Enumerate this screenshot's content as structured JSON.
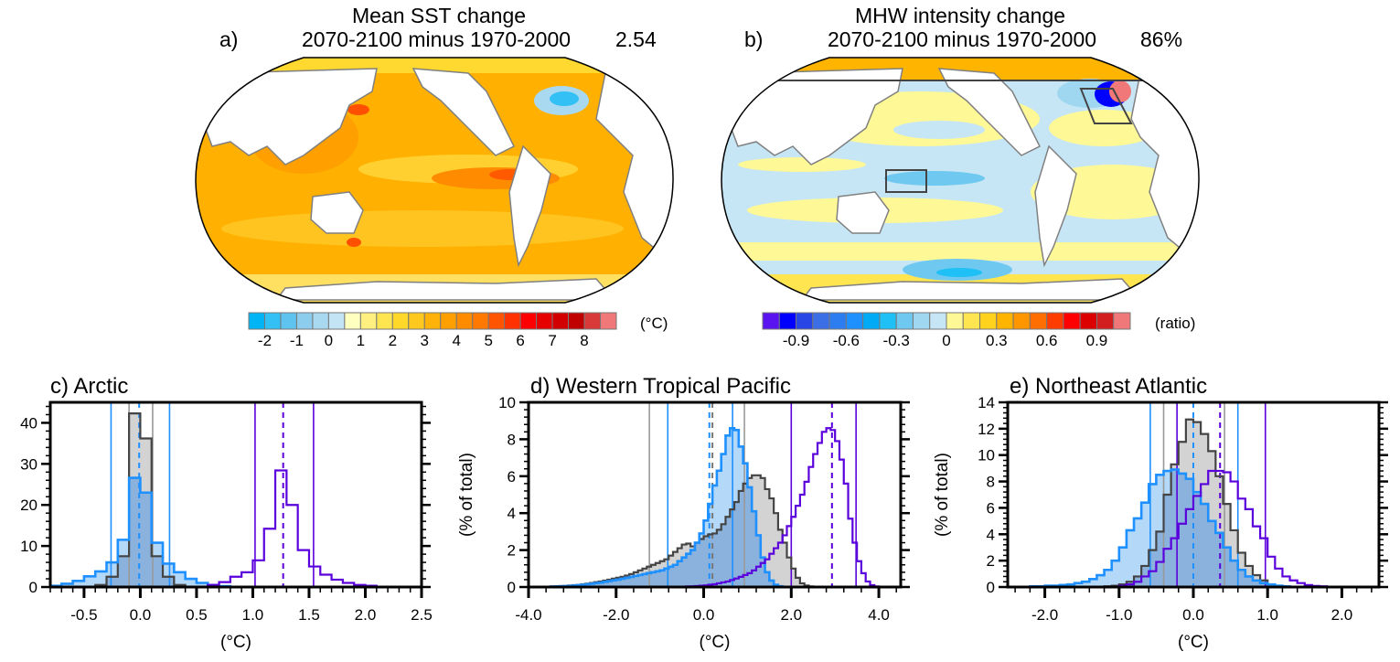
{
  "maps": [
    {
      "id": "a",
      "letter": "a)",
      "title": "Mean SST change",
      "subtitle": "2070-2100 minus 1970-2000",
      "stat": "2.54",
      "unit": "(°C)",
      "colorbar": {
        "colors": [
          "#00b4f5",
          "#33c0f5",
          "#5ec3ee",
          "#8ccdee",
          "#a9d9f0",
          "#c3e4f5",
          "#ffffc0",
          "#fff080",
          "#ffe650",
          "#ffd82a",
          "#ffc81e",
          "#ffb20a",
          "#ffa000",
          "#ff8c00",
          "#ff7800",
          "#ff5500",
          "#ff3200",
          "#ff0000",
          "#e60000",
          "#d20000",
          "#c00000",
          "#d83a3a",
          "#f07878"
        ],
        "tick_labels": [
          "-2",
          "-1",
          "0",
          "1",
          "2",
          "3",
          "4",
          "5",
          "6",
          "7",
          "8"
        ],
        "tick_boundaries": [
          1,
          3,
          5,
          7,
          9,
          11,
          13,
          15,
          17,
          19,
          21
        ]
      },
      "boxes": []
    },
    {
      "id": "b",
      "letter": "b)",
      "title": "MHW intensity change",
      "subtitle": "2070-2100 minus 1970-2000",
      "stat": "86%",
      "unit": "(ratio)",
      "colorbar": {
        "colors": [
          "#5a14f0",
          "#0000ff",
          "#2846e6",
          "#3c6ee6",
          "#2d7df0",
          "#1e90ff",
          "#00aaf5",
          "#1ec0f5",
          "#6ec8f0",
          "#9fd6f0",
          "#c6e6f5",
          "#fff896",
          "#ffe650",
          "#ffd21e",
          "#ffb400",
          "#ff9600",
          "#ff6e00",
          "#ff3c00",
          "#ff0000",
          "#dc0000",
          "#d21e1e",
          "#f07878"
        ],
        "tick_labels": [
          "-0.9",
          "-0.6",
          "-0.3",
          "0",
          "0.3",
          "0.6",
          "0.9"
        ],
        "tick_boundaries": [
          2,
          5,
          8,
          11,
          14,
          17,
          20
        ]
      },
      "boxes": [
        "Western Tropical Pacific box",
        "Northeast Atlantic box",
        "Arctic boundary line"
      ]
    }
  ],
  "chart_data": [
    {
      "type": "histogram",
      "id": "c",
      "title": "c) Arctic",
      "xlabel": "(°C)",
      "ylabel": "",
      "xlim": [
        -0.8,
        2.5
      ],
      "ylim": [
        0,
        45
      ],
      "xticks": [
        -0.5,
        0.0,
        0.5,
        1.0,
        1.5,
        2.0,
        2.5
      ],
      "xtick_labels": [
        "-0.5",
        "0.0",
        "0.5",
        "1.0",
        "1.5",
        "2.0",
        "2.5"
      ],
      "yticks": [
        0,
        10,
        20,
        30,
        40
      ],
      "ytick_labels": [
        "0",
        "10",
        "20",
        "30",
        "40"
      ],
      "bin_width": 0.1,
      "series": [
        {
          "name": "historical (gray filled)",
          "color": "#444444",
          "fill": "#d3d3d3",
          "bin_start": -0.4,
          "values": [
            0.5,
            2.5,
            7.5,
            42.3,
            36.2,
            7.5,
            2.5,
            0.5
          ]
        },
        {
          "name": "detrended future (blue filled)",
          "color": "#1e90ff",
          "fill": "#8ab8e6",
          "bin_start": -0.8,
          "values": [
            0.3,
            0.8,
            1.5,
            2.6,
            3.8,
            6.0,
            11.5,
            26.6,
            23.0,
            10.8,
            5.7,
            3.6,
            2.0,
            1.0,
            0.5,
            0.2
          ]
        },
        {
          "name": "future (purple outline)",
          "color": "#5a00dc",
          "fill": "none",
          "bin_start": 0.5,
          "values": [
            0.1,
            0.5,
            1.2,
            2.5,
            3.6,
            6.5,
            14.2,
            28.4,
            20.0,
            9.0,
            5.0,
            3.0,
            1.8,
            1.0,
            0.5,
            0.3,
            0.1,
            0.05
          ]
        }
      ],
      "vlines": [
        {
          "x": -0.1,
          "color": "#999999",
          "style": "solid"
        },
        {
          "x": 0.11,
          "color": "#999999",
          "style": "solid"
        },
        {
          "x": -0.26,
          "color": "#1e90ff",
          "style": "solid"
        },
        {
          "x": 0.26,
          "color": "#1e90ff",
          "style": "solid"
        },
        {
          "x": -0.01,
          "color": "#1e90ff",
          "style": "dashed"
        },
        {
          "x": 1.02,
          "color": "#5a00dc",
          "style": "solid"
        },
        {
          "x": 1.54,
          "color": "#5a00dc",
          "style": "solid"
        },
        {
          "x": 1.27,
          "color": "#5a00dc",
          "style": "dashed"
        }
      ]
    },
    {
      "type": "histogram",
      "id": "d",
      "title": "d) Western Tropical Pacific",
      "xlabel": "(°C)",
      "ylabel": "(% of total)",
      "xlim": [
        -4.0,
        4.5
      ],
      "ylim": [
        0,
        10
      ],
      "xticks": [
        -4.0,
        -2.0,
        0.0,
        2.0,
        4.0
      ],
      "xtick_labels": [
        "-4.0",
        "-2.0",
        "0.0",
        "2.0",
        "4.0"
      ],
      "yticks": [
        0,
        2,
        4,
        6,
        8,
        10
      ],
      "ytick_labels": [
        "0",
        "2",
        "4",
        "6",
        "8",
        "10"
      ],
      "bin_width": 0.1,
      "series": [
        {
          "name": "historical (gray filled)",
          "color": "#444444",
          "fill": "#d3d3d3",
          "bin_start": -3.6,
          "values": [
            0.02,
            0.03,
            0.04,
            0.05,
            0.06,
            0.08,
            0.1,
            0.12,
            0.15,
            0.18,
            0.22,
            0.26,
            0.3,
            0.35,
            0.4,
            0.45,
            0.5,
            0.55,
            0.62,
            0.7,
            0.8,
            0.9,
            1.0,
            1.1,
            1.2,
            1.3,
            1.4,
            1.5,
            1.7,
            1.9,
            2.1,
            2.3,
            2.35,
            2.2,
            2.4,
            2.6,
            2.75,
            2.85,
            2.9,
            3.1,
            3.4,
            3.8,
            4.2,
            4.6,
            5.2,
            5.6,
            5.9,
            6.05,
            6.05,
            5.9,
            5.3,
            4.8,
            4.0,
            3.1,
            2.4,
            1.6,
            1.0,
            0.5,
            0.2,
            0.08,
            0.03,
            0.01
          ]
        },
        {
          "name": "detrended future (blue filled)",
          "color": "#1e90ff",
          "fill": "#8ab8e6",
          "bin_start": -3.6,
          "values": [
            0.01,
            0.02,
            0.03,
            0.04,
            0.05,
            0.06,
            0.08,
            0.1,
            0.12,
            0.15,
            0.18,
            0.21,
            0.24,
            0.28,
            0.32,
            0.36,
            0.4,
            0.45,
            0.5,
            0.55,
            0.6,
            0.65,
            0.7,
            0.75,
            0.8,
            0.85,
            0.9,
            1.0,
            1.1,
            1.2,
            1.4,
            1.6,
            1.8,
            2.0,
            2.4,
            2.9,
            3.6,
            4.5,
            5.5,
            6.3,
            7.2,
            8.2,
            8.6,
            8.5,
            7.6,
            6.7,
            5.4,
            4.1,
            2.8,
            1.6,
            0.8,
            0.35,
            0.12,
            0.04
          ]
        },
        {
          "name": "future (purple outline)",
          "color": "#5a00dc",
          "fill": "none",
          "bin_start": -0.6,
          "values": [
            0.01,
            0.02,
            0.03,
            0.04,
            0.05,
            0.07,
            0.09,
            0.12,
            0.15,
            0.2,
            0.25,
            0.3,
            0.38,
            0.46,
            0.55,
            0.65,
            0.75,
            0.9,
            1.1,
            1.3,
            1.5,
            1.8,
            2.1,
            2.4,
            2.8,
            3.3,
            3.8,
            4.4,
            5.0,
            5.7,
            6.5,
            7.2,
            7.8,
            8.4,
            8.6,
            8.5,
            7.9,
            6.9,
            5.6,
            3.7,
            2.4,
            1.4,
            0.75,
            0.3,
            0.1,
            0.03
          ]
        }
      ],
      "vlines": [
        {
          "x": -1.24,
          "color": "#999999",
          "style": "solid"
        },
        {
          "x": 0.93,
          "color": "#999999",
          "style": "solid"
        },
        {
          "x": -0.82,
          "color": "#1e90ff",
          "style": "solid"
        },
        {
          "x": 0.66,
          "color": "#1e90ff",
          "style": "solid"
        },
        {
          "x": 0.13,
          "color": "#1e90ff",
          "style": "dashed"
        },
        {
          "x": 0.2,
          "color": "#777777",
          "style": "dashed"
        },
        {
          "x": 2.0,
          "color": "#5a00dc",
          "style": "solid"
        },
        {
          "x": 3.48,
          "color": "#5a00dc",
          "style": "solid"
        },
        {
          "x": 2.93,
          "color": "#5a00dc",
          "style": "dashed"
        }
      ]
    },
    {
      "type": "histogram",
      "id": "e",
      "title": "e) Northeast Atlantic",
      "xlabel": "(°C)",
      "ylabel": "(% of total)",
      "xlim": [
        -2.5,
        2.5
      ],
      "ylim": [
        0,
        14
      ],
      "xticks": [
        -2.0,
        -1.0,
        0.0,
        1.0,
        2.0
      ],
      "xtick_labels": [
        "-2.0",
        "-1.0",
        "0.0",
        "1.0",
        "2.0"
      ],
      "yticks": [
        0,
        2,
        4,
        6,
        8,
        10,
        12,
        14
      ],
      "ytick_labels": [
        "0",
        "2",
        "4",
        "6",
        "8",
        "10",
        "12",
        "14"
      ],
      "bin_width": 0.1,
      "series": [
        {
          "name": "historical (gray filled)",
          "color": "#444444",
          "fill": "#d3d3d3",
          "bin_start": -1.2,
          "values": [
            0.05,
            0.1,
            0.2,
            0.4,
            0.8,
            1.6,
            2.8,
            4.2,
            7.0,
            9.3,
            11.0,
            12.7,
            12.5,
            11.6,
            10.3,
            8.4,
            6.3,
            4.3,
            2.6,
            1.6,
            0.9,
            0.5,
            0.2,
            0.1
          ]
        },
        {
          "name": "detrended future (blue filled)",
          "color": "#1e90ff",
          "fill": "#8ab8e6",
          "bin_start": -2.2,
          "values": [
            0.05,
            0.05,
            0.1,
            0.1,
            0.15,
            0.2,
            0.3,
            0.4,
            0.6,
            0.9,
            1.3,
            2.0,
            3.0,
            4.3,
            5.2,
            6.4,
            7.8,
            8.5,
            8.8,
            8.9,
            8.6,
            8.2,
            7.2,
            6.3,
            5.0,
            4.1,
            3.0,
            2.0,
            1.3,
            0.8,
            0.5,
            0.3,
            0.2,
            0.1,
            0.05
          ]
        },
        {
          "name": "future (purple outline)",
          "color": "#5a00dc",
          "fill": "none",
          "bin_start": -1.0,
          "values": [
            0.1,
            0.2,
            0.4,
            0.8,
            1.2,
            1.9,
            2.9,
            3.7,
            4.8,
            5.9,
            6.9,
            7.8,
            8.8,
            8.8,
            8.7,
            8.0,
            6.7,
            5.9,
            4.6,
            3.7,
            2.3,
            1.4,
            0.8,
            0.5,
            0.3,
            0.15,
            0.08,
            0.05
          ]
        }
      ],
      "vlines": [
        {
          "x": -0.4,
          "color": "#999999",
          "style": "solid"
        },
        {
          "x": 0.42,
          "color": "#999999",
          "style": "solid"
        },
        {
          "x": -0.58,
          "color": "#1e90ff",
          "style": "solid"
        },
        {
          "x": 0.6,
          "color": "#1e90ff",
          "style": "solid"
        },
        {
          "x": 0.0,
          "color": "#1e90ff",
          "style": "dashed"
        },
        {
          "x": -0.22,
          "color": "#5a00dc",
          "style": "solid"
        },
        {
          "x": 0.97,
          "color": "#5a00dc",
          "style": "solid"
        },
        {
          "x": 0.36,
          "color": "#5a00dc",
          "style": "dashed"
        }
      ]
    }
  ]
}
